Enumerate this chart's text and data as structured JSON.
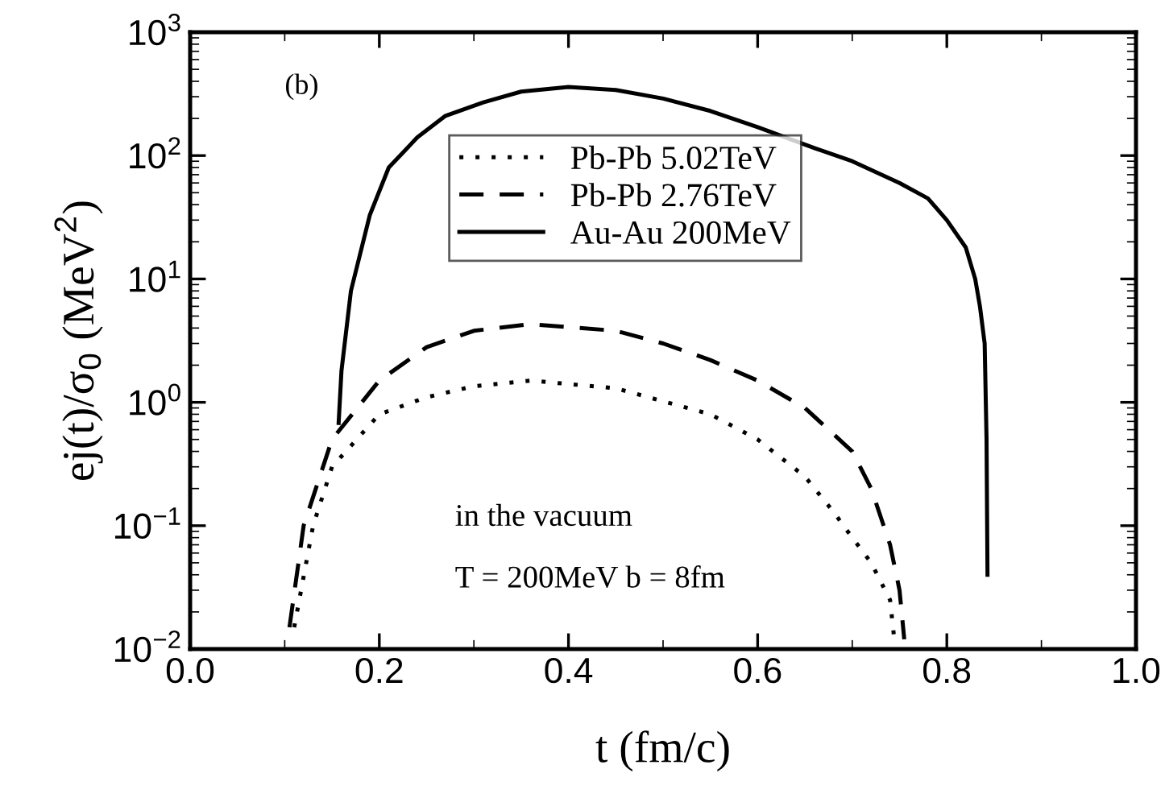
{
  "chart_data": {
    "type": "line",
    "xlabel": "t (fm/c)",
    "ylabel": "ej(t)/σ$_{0}$ (MeV$^{2}$)",
    "log": "y",
    "xlim": [
      0.0,
      1.0
    ],
    "xticks": [
      {
        "value": 0.0,
        "label": "0.0"
      },
      {
        "value": 0.2,
        "label": "0.2"
      },
      {
        "value": 0.4,
        "label": "0.4"
      },
      {
        "value": 0.6,
        "label": "0.6"
      },
      {
        "value": 0.8,
        "label": "0.8"
      },
      {
        "value": 1.0,
        "label": "1.0"
      }
    ],
    "ylim": [
      0.01,
      1000
    ],
    "yticks": [
      {
        "value": 0.01,
        "label": "10$^{−2}$"
      },
      {
        "value": 0.1,
        "label": "10$^{−1}$"
      },
      {
        "value": 1,
        "label": "10$^{0}$"
      },
      {
        "value": 10,
        "label": "10$^{1}$"
      },
      {
        "value": 100,
        "label": "10$^{2}$"
      },
      {
        "value": 1000,
        "label": "10$^{3}$"
      }
    ],
    "legend": "top",
    "grid": false,
    "annotations": [
      "(b)",
      "in the vacuum",
      "T = 200MeV b = 8fm"
    ],
    "series": [
      {
        "name": "Pb-Pb 5.02TeV",
        "color": "#000000",
        "line_style": "dotted",
        "x": [
          0.11,
          0.13,
          0.15,
          0.2,
          0.25,
          0.3,
          0.36,
          0.45,
          0.55,
          0.6,
          0.65,
          0.68,
          0.7,
          0.72,
          0.74,
          0.745
        ],
        "values": [
          0.015,
          0.1,
          0.3,
          0.8,
          1.1,
          1.35,
          1.5,
          1.3,
          0.8,
          0.5,
          0.25,
          0.13,
          0.08,
          0.05,
          0.025,
          0.011
        ]
      },
      {
        "name": "Pb-Pb 2.76TeV",
        "color": "#000000",
        "line_style": "dashed",
        "x": [
          0.105,
          0.12,
          0.15,
          0.2,
          0.25,
          0.3,
          0.36,
          0.45,
          0.5,
          0.55,
          0.6,
          0.65,
          0.7,
          0.72,
          0.74,
          0.75,
          0.755
        ],
        "values": [
          0.015,
          0.1,
          0.5,
          1.5,
          2.8,
          3.8,
          4.3,
          3.8,
          3.0,
          2.2,
          1.5,
          0.9,
          0.4,
          0.2,
          0.07,
          0.03,
          0.012
        ]
      },
      {
        "name": "Au-Au 200MeV",
        "color": "#000000",
        "line_style": "solid",
        "x": [
          0.157,
          0.16,
          0.17,
          0.19,
          0.21,
          0.24,
          0.27,
          0.31,
          0.35,
          0.4,
          0.45,
          0.5,
          0.55,
          0.6,
          0.66,
          0.7,
          0.75,
          0.78,
          0.8,
          0.82,
          0.83,
          0.835,
          0.84,
          0.842,
          0.843
        ],
        "values": [
          0.68,
          1.8,
          8,
          33,
          80,
          140,
          210,
          270,
          330,
          360,
          340,
          290,
          230,
          170,
          115,
          90,
          60,
          45,
          30,
          18,
          10,
          6,
          3,
          0.5,
          0.04
        ]
      }
    ]
  }
}
